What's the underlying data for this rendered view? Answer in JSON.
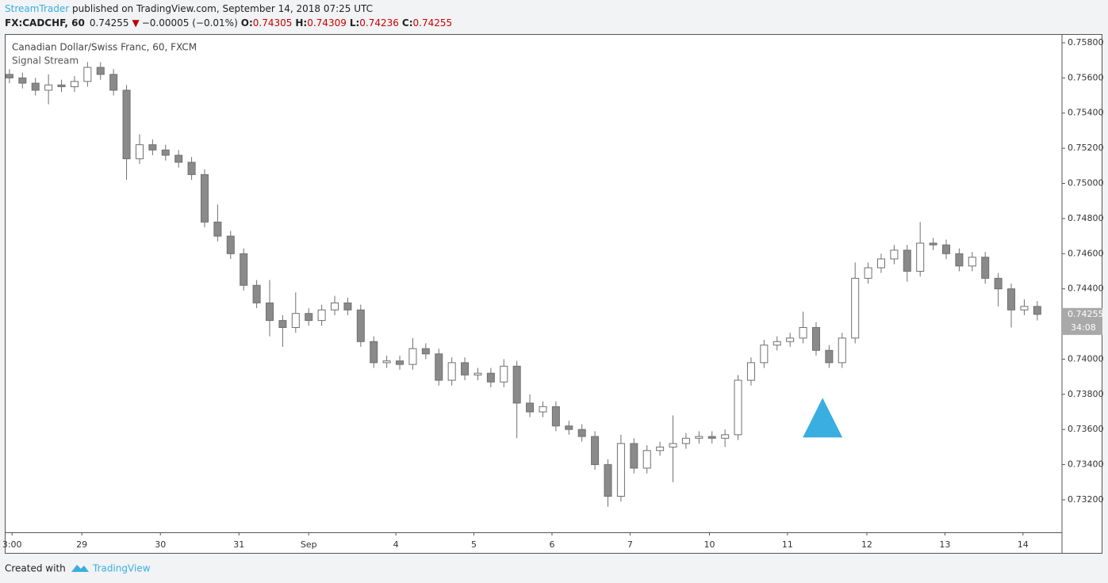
{
  "header": {
    "author": "StreamTrader",
    "published": " published on TradingView.com, September 14, 2018 07:25 UTC",
    "symbol": "FX:CADCHF, 60",
    "price": "0.74255",
    "change": "−0.00005 (−0.01%)",
    "ohlc": [
      {
        "label": "O:",
        "value": "0.74305"
      },
      {
        "label": "H:",
        "value": "0.74309"
      },
      {
        "label": "L:",
        "value": "0.74236"
      },
      {
        "label": "C:",
        "value": "0.74255"
      }
    ]
  },
  "chart_data": {
    "type": "candlestick",
    "title": "Canadian Dollar/Swiss Franc, 60, FXCM",
    "subtitle": "Signal Stream",
    "up_color": "#ffffff",
    "down_color": "#8a8a8a",
    "border_color": "#707070",
    "open": [
      0.7562,
      0.756,
      0.7557,
      0.7553,
      0.7556,
      0.7555,
      0.7558,
      0.7566,
      0.7562,
      0.7553,
      0.7514,
      0.7522,
      0.7519,
      0.7516,
      0.7512,
      0.7505,
      0.7478,
      0.747,
      0.746,
      0.7442,
      0.7432,
      0.7422,
      0.7418,
      0.7426,
      0.7422,
      0.7428,
      0.7432,
      0.7428,
      0.741,
      0.7398,
      0.7399,
      0.7397,
      0.7406,
      0.7403,
      0.7388,
      0.7398,
      0.7391,
      0.7392,
      0.7387,
      0.7396,
      0.7375,
      0.737,
      0.7373,
      0.7362,
      0.736,
      0.7356,
      0.734,
      0.7322,
      0.7352,
      0.7338,
      0.7348,
      0.735,
      0.7352,
      0.7355,
      0.7356,
      0.7355,
      0.7357,
      0.7388,
      0.7398,
      0.7408,
      0.741,
      0.7412,
      0.7418,
      0.7405,
      0.7398,
      0.7412,
      0.7446,
      0.7452,
      0.7457,
      0.7462,
      0.745,
      0.7466,
      0.7465,
      0.746,
      0.7453,
      0.7458,
      0.7446,
      0.744,
      0.7428,
      0.743
    ],
    "high": [
      0.7565,
      0.7563,
      0.756,
      0.7562,
      0.7559,
      0.7561,
      0.7569,
      0.7569,
      0.7565,
      0.7556,
      0.7528,
      0.7525,
      0.7522,
      0.7519,
      0.7515,
      0.7508,
      0.7488,
      0.7473,
      0.7463,
      0.7445,
      0.7445,
      0.7425,
      0.7438,
      0.7429,
      0.7431,
      0.7436,
      0.7435,
      0.7431,
      0.7413,
      0.7402,
      0.7402,
      0.7412,
      0.7409,
      0.7406,
      0.7401,
      0.7401,
      0.7395,
      0.7395,
      0.74,
      0.7399,
      0.738,
      0.7376,
      0.7376,
      0.7365,
      0.7363,
      0.7359,
      0.7343,
      0.7357,
      0.7355,
      0.7351,
      0.7353,
      0.7368,
      0.7358,
      0.7359,
      0.7359,
      0.736,
      0.7391,
      0.7401,
      0.7411,
      0.7413,
      0.7415,
      0.7427,
      0.7421,
      0.7408,
      0.7415,
      0.7455,
      0.7455,
      0.746,
      0.7465,
      0.7465,
      0.7478,
      0.7469,
      0.7468,
      0.7463,
      0.7461,
      0.7461,
      0.7449,
      0.7443,
      0.7434,
      0.7433
    ],
    "low": [
      0.7557,
      0.7554,
      0.755,
      0.7545,
      0.7552,
      0.7552,
      0.7555,
      0.7559,
      0.755,
      0.7502,
      0.7511,
      0.7516,
      0.7513,
      0.7509,
      0.7502,
      0.7475,
      0.7467,
      0.7457,
      0.7439,
      0.7429,
      0.7413,
      0.7407,
      0.7415,
      0.7419,
      0.7419,
      0.7425,
      0.7425,
      0.7407,
      0.7395,
      0.7395,
      0.7394,
      0.7394,
      0.74,
      0.7385,
      0.7385,
      0.7388,
      0.7388,
      0.7384,
      0.7384,
      0.7355,
      0.7367,
      0.7367,
      0.7359,
      0.7357,
      0.7353,
      0.7337,
      0.7316,
      0.7319,
      0.7335,
      0.7335,
      0.7345,
      0.733,
      0.7349,
      0.7352,
      0.7352,
      0.735,
      0.7354,
      0.7385,
      0.7395,
      0.7405,
      0.7407,
      0.7409,
      0.7402,
      0.7395,
      0.7395,
      0.7409,
      0.7443,
      0.7449,
      0.7454,
      0.7444,
      0.7447,
      0.7462,
      0.7457,
      0.745,
      0.745,
      0.7443,
      0.743,
      0.7418,
      0.7425,
      0.7422
    ],
    "close": [
      0.756,
      0.7557,
      0.7553,
      0.7556,
      0.7555,
      0.7558,
      0.7566,
      0.7562,
      0.7553,
      0.7514,
      0.7522,
      0.7519,
      0.7516,
      0.7512,
      0.7505,
      0.7478,
      0.747,
      0.746,
      0.7442,
      0.7432,
      0.7422,
      0.7418,
      0.7426,
      0.7422,
      0.7428,
      0.7432,
      0.7428,
      0.741,
      0.7398,
      0.7399,
      0.7397,
      0.7406,
      0.7403,
      0.7388,
      0.7398,
      0.7391,
      0.7392,
      0.7387,
      0.7396,
      0.7375,
      0.737,
      0.7373,
      0.7362,
      0.736,
      0.7356,
      0.734,
      0.7322,
      0.7352,
      0.7338,
      0.7348,
      0.735,
      0.7352,
      0.7355,
      0.7356,
      0.7355,
      0.7357,
      0.7388,
      0.7398,
      0.7408,
      0.741,
      0.7412,
      0.7418,
      0.7405,
      0.7398,
      0.7412,
      0.7446,
      0.7452,
      0.7457,
      0.7462,
      0.745,
      0.7466,
      0.7465,
      0.746,
      0.7453,
      0.7458,
      0.7446,
      0.744,
      0.7428,
      0.743,
      0.74255
    ],
    "xlim": [
      -0.3,
      80.9
    ],
    "ylim": [
      0.73015,
      0.75845
    ],
    "xticks": [
      {
        "value": 0.2,
        "label": "3:00"
      },
      {
        "value": 5.56,
        "label": "29"
      },
      {
        "value": 11.6,
        "label": "30"
      },
      {
        "value": 17.64,
        "label": "31"
      },
      {
        "value": 23.0,
        "label": "Sep"
      },
      {
        "value": 29.7,
        "label": "4"
      },
      {
        "value": 35.7,
        "label": "5"
      },
      {
        "value": 41.7,
        "label": "6"
      },
      {
        "value": 47.7,
        "label": "7"
      },
      {
        "value": 53.8,
        "label": "10"
      },
      {
        "value": 59.8,
        "label": "11"
      },
      {
        "value": 65.9,
        "label": "12"
      },
      {
        "value": 71.9,
        "label": "13"
      },
      {
        "value": 77.9,
        "label": "14"
      }
    ],
    "yticks": [
      {
        "value": 0.732,
        "label": "0.73200"
      },
      {
        "value": 0.734,
        "label": "0.73400"
      },
      {
        "value": 0.736,
        "label": "0.73600"
      },
      {
        "value": 0.738,
        "label": "0.73800"
      },
      {
        "value": 0.74,
        "label": "0.74000"
      },
      {
        "value": 0.744,
        "label": "0.74400"
      },
      {
        "value": 0.746,
        "label": "0.74600"
      },
      {
        "value": 0.748,
        "label": "0.74800"
      },
      {
        "value": 0.75,
        "label": "0.75000"
      },
      {
        "value": 0.752,
        "label": "0.75200"
      },
      {
        "value": 0.754,
        "label": "0.75400"
      },
      {
        "value": 0.756,
        "label": "0.75600"
      },
      {
        "value": 0.758,
        "label": "0.75800"
      }
    ],
    "last_price": 0.74255,
    "countdown": "34:08",
    "signals": {
      "x": [
        62.5
      ],
      "y": [
        0.7378
      ],
      "color": "#3aaee0"
    }
  },
  "footer": {
    "created": "Created with",
    "brand": "TradingView"
  }
}
